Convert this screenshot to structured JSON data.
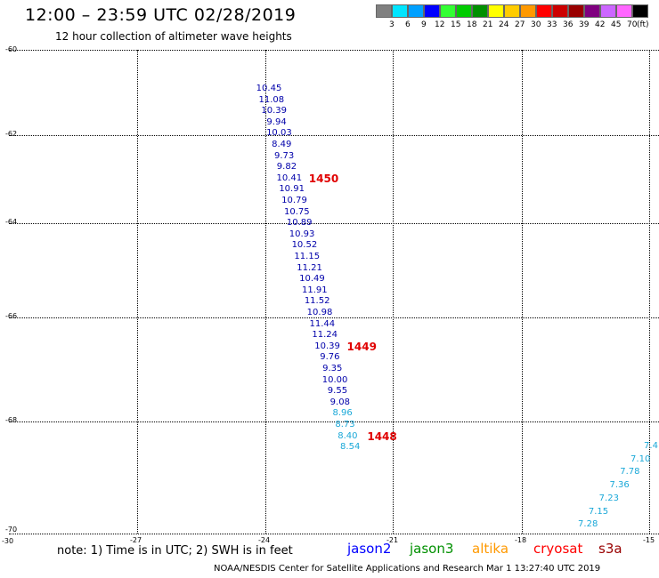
{
  "title": "12:00 – 23:59 UTC 02/28/2019",
  "subtitle": "12 hour collection of altimeter wave heights",
  "colorbar": {
    "colors": [
      "#808080",
      "#00e5ff",
      "#00a0ff",
      "#0000ff",
      "#33ff33",
      "#00cc00",
      "#009000",
      "#ffff00",
      "#ffcc00",
      "#ff9900",
      "#ff0000",
      "#cc0000",
      "#990000",
      "#800080",
      "#cc66ff",
      "#ff66ff",
      "#000000"
    ],
    "labels": [
      "3",
      "6",
      "9",
      "12",
      "15",
      "18",
      "21",
      "24",
      "27",
      "30",
      "33",
      "36",
      "39",
      "42",
      "45",
      "70"
    ],
    "unit": "(ft)"
  },
  "axes": {
    "lat_labels": [
      "-60",
      "-62",
      "-64",
      "-66",
      "-68",
      "-70",
      "-30"
    ],
    "lon_labels": [
      "-27",
      "-24",
      "-21",
      "-18",
      "-15"
    ]
  },
  "tracks": [
    {
      "passes": [
        {
          "id": "1450",
          "obs_index": 8
        },
        {
          "id": "1449",
          "obs_index": 23
        },
        {
          "id": "1448",
          "obs_index": 31
        }
      ],
      "observations": [
        {
          "v": "10.45",
          "c": "#0000aa"
        },
        {
          "v": "11.08",
          "c": "#0000aa"
        },
        {
          "v": "10.39",
          "c": "#0000aa"
        },
        {
          "v": "9.94",
          "c": "#0000aa"
        },
        {
          "v": "10.03",
          "c": "#0000aa"
        },
        {
          "v": "8.49",
          "c": "#0000aa"
        },
        {
          "v": "9.73",
          "c": "#0000aa"
        },
        {
          "v": "9.82",
          "c": "#0000aa"
        },
        {
          "v": "10.41",
          "c": "#0000aa"
        },
        {
          "v": "10.91",
          "c": "#0000aa"
        },
        {
          "v": "10.79",
          "c": "#0000aa"
        },
        {
          "v": "10.75",
          "c": "#0000aa"
        },
        {
          "v": "10.89",
          "c": "#0000aa"
        },
        {
          "v": "10.93",
          "c": "#0000aa"
        },
        {
          "v": "10.52",
          "c": "#0000aa"
        },
        {
          "v": "11.15",
          "c": "#0000aa"
        },
        {
          "v": "11.21",
          "c": "#0000aa"
        },
        {
          "v": "10.49",
          "c": "#0000aa"
        },
        {
          "v": "11.91",
          "c": "#0000aa"
        },
        {
          "v": "11.52",
          "c": "#0000aa"
        },
        {
          "v": "10.98",
          "c": "#0000aa"
        },
        {
          "v": "11.44",
          "c": "#0000aa"
        },
        {
          "v": "11.24",
          "c": "#0000aa"
        },
        {
          "v": "10.39",
          "c": "#0000aa"
        },
        {
          "v": "9.76",
          "c": "#0000aa"
        },
        {
          "v": "9.35",
          "c": "#0000aa"
        },
        {
          "v": "10.00",
          "c": "#0000aa"
        },
        {
          "v": "9.55",
          "c": "#0000aa"
        },
        {
          "v": "9.08",
          "c": "#0000aa"
        },
        {
          "v": "8.96",
          "c": "#1aa8d8"
        },
        {
          "v": "8.73",
          "c": "#1aa8d8"
        },
        {
          "v": "8.40",
          "c": "#1aa8d8"
        },
        {
          "v": "8.54",
          "c": "#1aa8d8"
        }
      ]
    },
    {
      "passes": [],
      "observations": [
        {
          "v": "7.4",
          "c": "#1aa8d8"
        },
        {
          "v": "7.10",
          "c": "#1aa8d8"
        },
        {
          "v": "7.78",
          "c": "#1aa8d8"
        },
        {
          "v": "7.36",
          "c": "#1aa8d8"
        },
        {
          "v": "7.23",
          "c": "#1aa8d8"
        },
        {
          "v": "7.15",
          "c": "#1aa8d8"
        },
        {
          "v": "7.28",
          "c": "#1aa8d8"
        }
      ]
    }
  ],
  "note": "note: 1) Time is in UTC; 2) SWH is in feet",
  "missions": [
    {
      "name": "jason2",
      "color": "#0000ff"
    },
    {
      "name": "jason3",
      "color": "#009000"
    },
    {
      "name": "altika",
      "color": "#ff9900"
    },
    {
      "name": "cryosat",
      "color": "#ff0000"
    },
    {
      "name": "s3a",
      "color": "#990000"
    }
  ],
  "credit": "NOAA/NESDIS Center for Satellite Applications and Research    Mar  1 13:27:40 UTC 2019"
}
